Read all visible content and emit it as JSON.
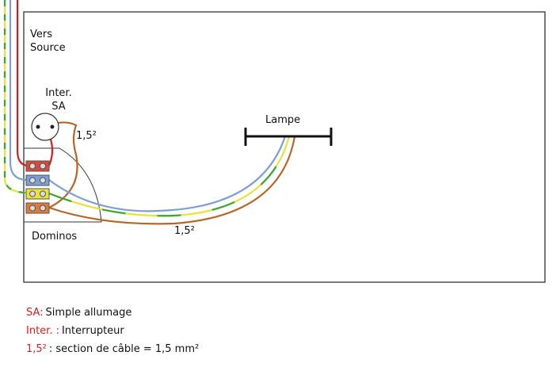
{
  "labels": {
    "source": [
      "Vers",
      "Source"
    ],
    "switch": [
      "Inter.",
      "SA"
    ],
    "switch_cable": "1,5²",
    "lamp": "Lampe",
    "dominos": "Dominos",
    "lamp_cable": "1,5²"
  },
  "legend": [
    {
      "key": "SA:",
      "text": "Simple allumage"
    },
    {
      "key": "Inter. :",
      "text": "Interrupteur"
    },
    {
      "key": "1,5²",
      "text": ": section de câble = 1,5 mm²"
    }
  ]
}
